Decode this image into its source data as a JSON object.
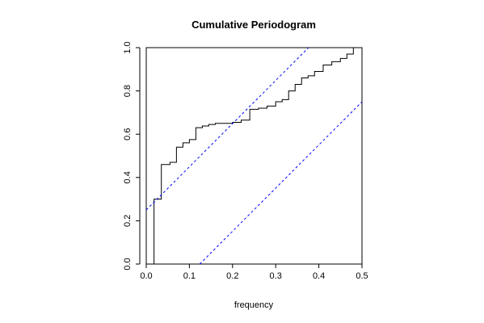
{
  "chart_data": {
    "type": "line",
    "title": "Cumulative Periodogram",
    "xlabel": "frequency",
    "ylabel": "",
    "xlim": [
      0,
      0.5
    ],
    "ylim": [
      0,
      1
    ],
    "xticks": [
      "0.0",
      "0.1",
      "0.2",
      "0.3",
      "0.4",
      "0.5"
    ],
    "yticks": [
      "0.0",
      "0.2",
      "0.4",
      "0.6",
      "0.8",
      "1.0"
    ],
    "grid": false,
    "series": [
      {
        "style": "step",
        "color": "#000000",
        "x": [
          0.018,
          0.035,
          0.055,
          0.07,
          0.085,
          0.1,
          0.115,
          0.13,
          0.145,
          0.16,
          0.18,
          0.2,
          0.22,
          0.24,
          0.26,
          0.28,
          0.3,
          0.315,
          0.33,
          0.345,
          0.36,
          0.375,
          0.39,
          0.41,
          0.43,
          0.45,
          0.465,
          0.48
        ],
        "y": [
          0.3,
          0.46,
          0.47,
          0.54,
          0.56,
          0.575,
          0.63,
          0.638,
          0.645,
          0.65,
          0.65,
          0.655,
          0.665,
          0.715,
          0.72,
          0.73,
          0.75,
          0.76,
          0.8,
          0.83,
          0.86,
          0.87,
          0.89,
          0.92,
          0.935,
          0.95,
          0.97,
          1.0
        ]
      },
      {
        "style": "dashed",
        "color": "#0000ff",
        "x": [
          0,
          0.376
        ],
        "y": [
          0.25,
          1.0
        ]
      },
      {
        "style": "dashed",
        "color": "#0000ff",
        "x": [
          0.124,
          0.5
        ],
        "y": [
          0,
          0.75
        ]
      }
    ]
  }
}
